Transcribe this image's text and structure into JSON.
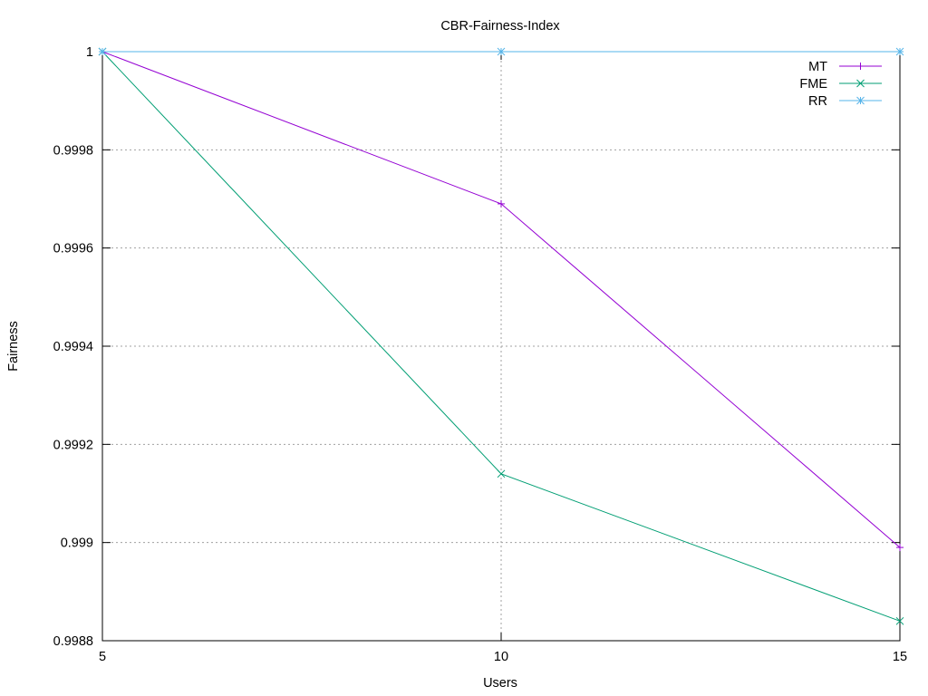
{
  "chart_data": {
    "type": "line",
    "title": "CBR-Fairness-Index",
    "xlabel": "Users",
    "ylabel": "Fairness",
    "x": [
      5,
      10,
      15
    ],
    "xlim": [
      5,
      15
    ],
    "ylim": [
      0.9988,
      1.0
    ],
    "xticks": [
      5,
      10,
      15
    ],
    "xtick_labels": [
      "5",
      "10",
      "15"
    ],
    "yticks": [
      0.9988,
      0.999,
      0.9992,
      0.9994,
      0.9996,
      0.9998,
      1.0
    ],
    "ytick_labels": [
      "0.9988",
      "0.999",
      "0.9992",
      "0.9994",
      "0.9996",
      "0.9998",
      "1"
    ],
    "grid": true,
    "legend_position": "top-right",
    "series": [
      {
        "name": "MT",
        "marker": "plus",
        "color": "#9400d3",
        "values": [
          1.0,
          0.99969,
          0.99899
        ]
      },
      {
        "name": "FME",
        "marker": "cross",
        "color": "#009e73",
        "values": [
          1.0,
          0.99914,
          0.99884
        ]
      },
      {
        "name": "RR",
        "marker": "asterisk",
        "color": "#56b4e9",
        "values": [
          1.0,
          1.0,
          1.0
        ]
      }
    ]
  }
}
